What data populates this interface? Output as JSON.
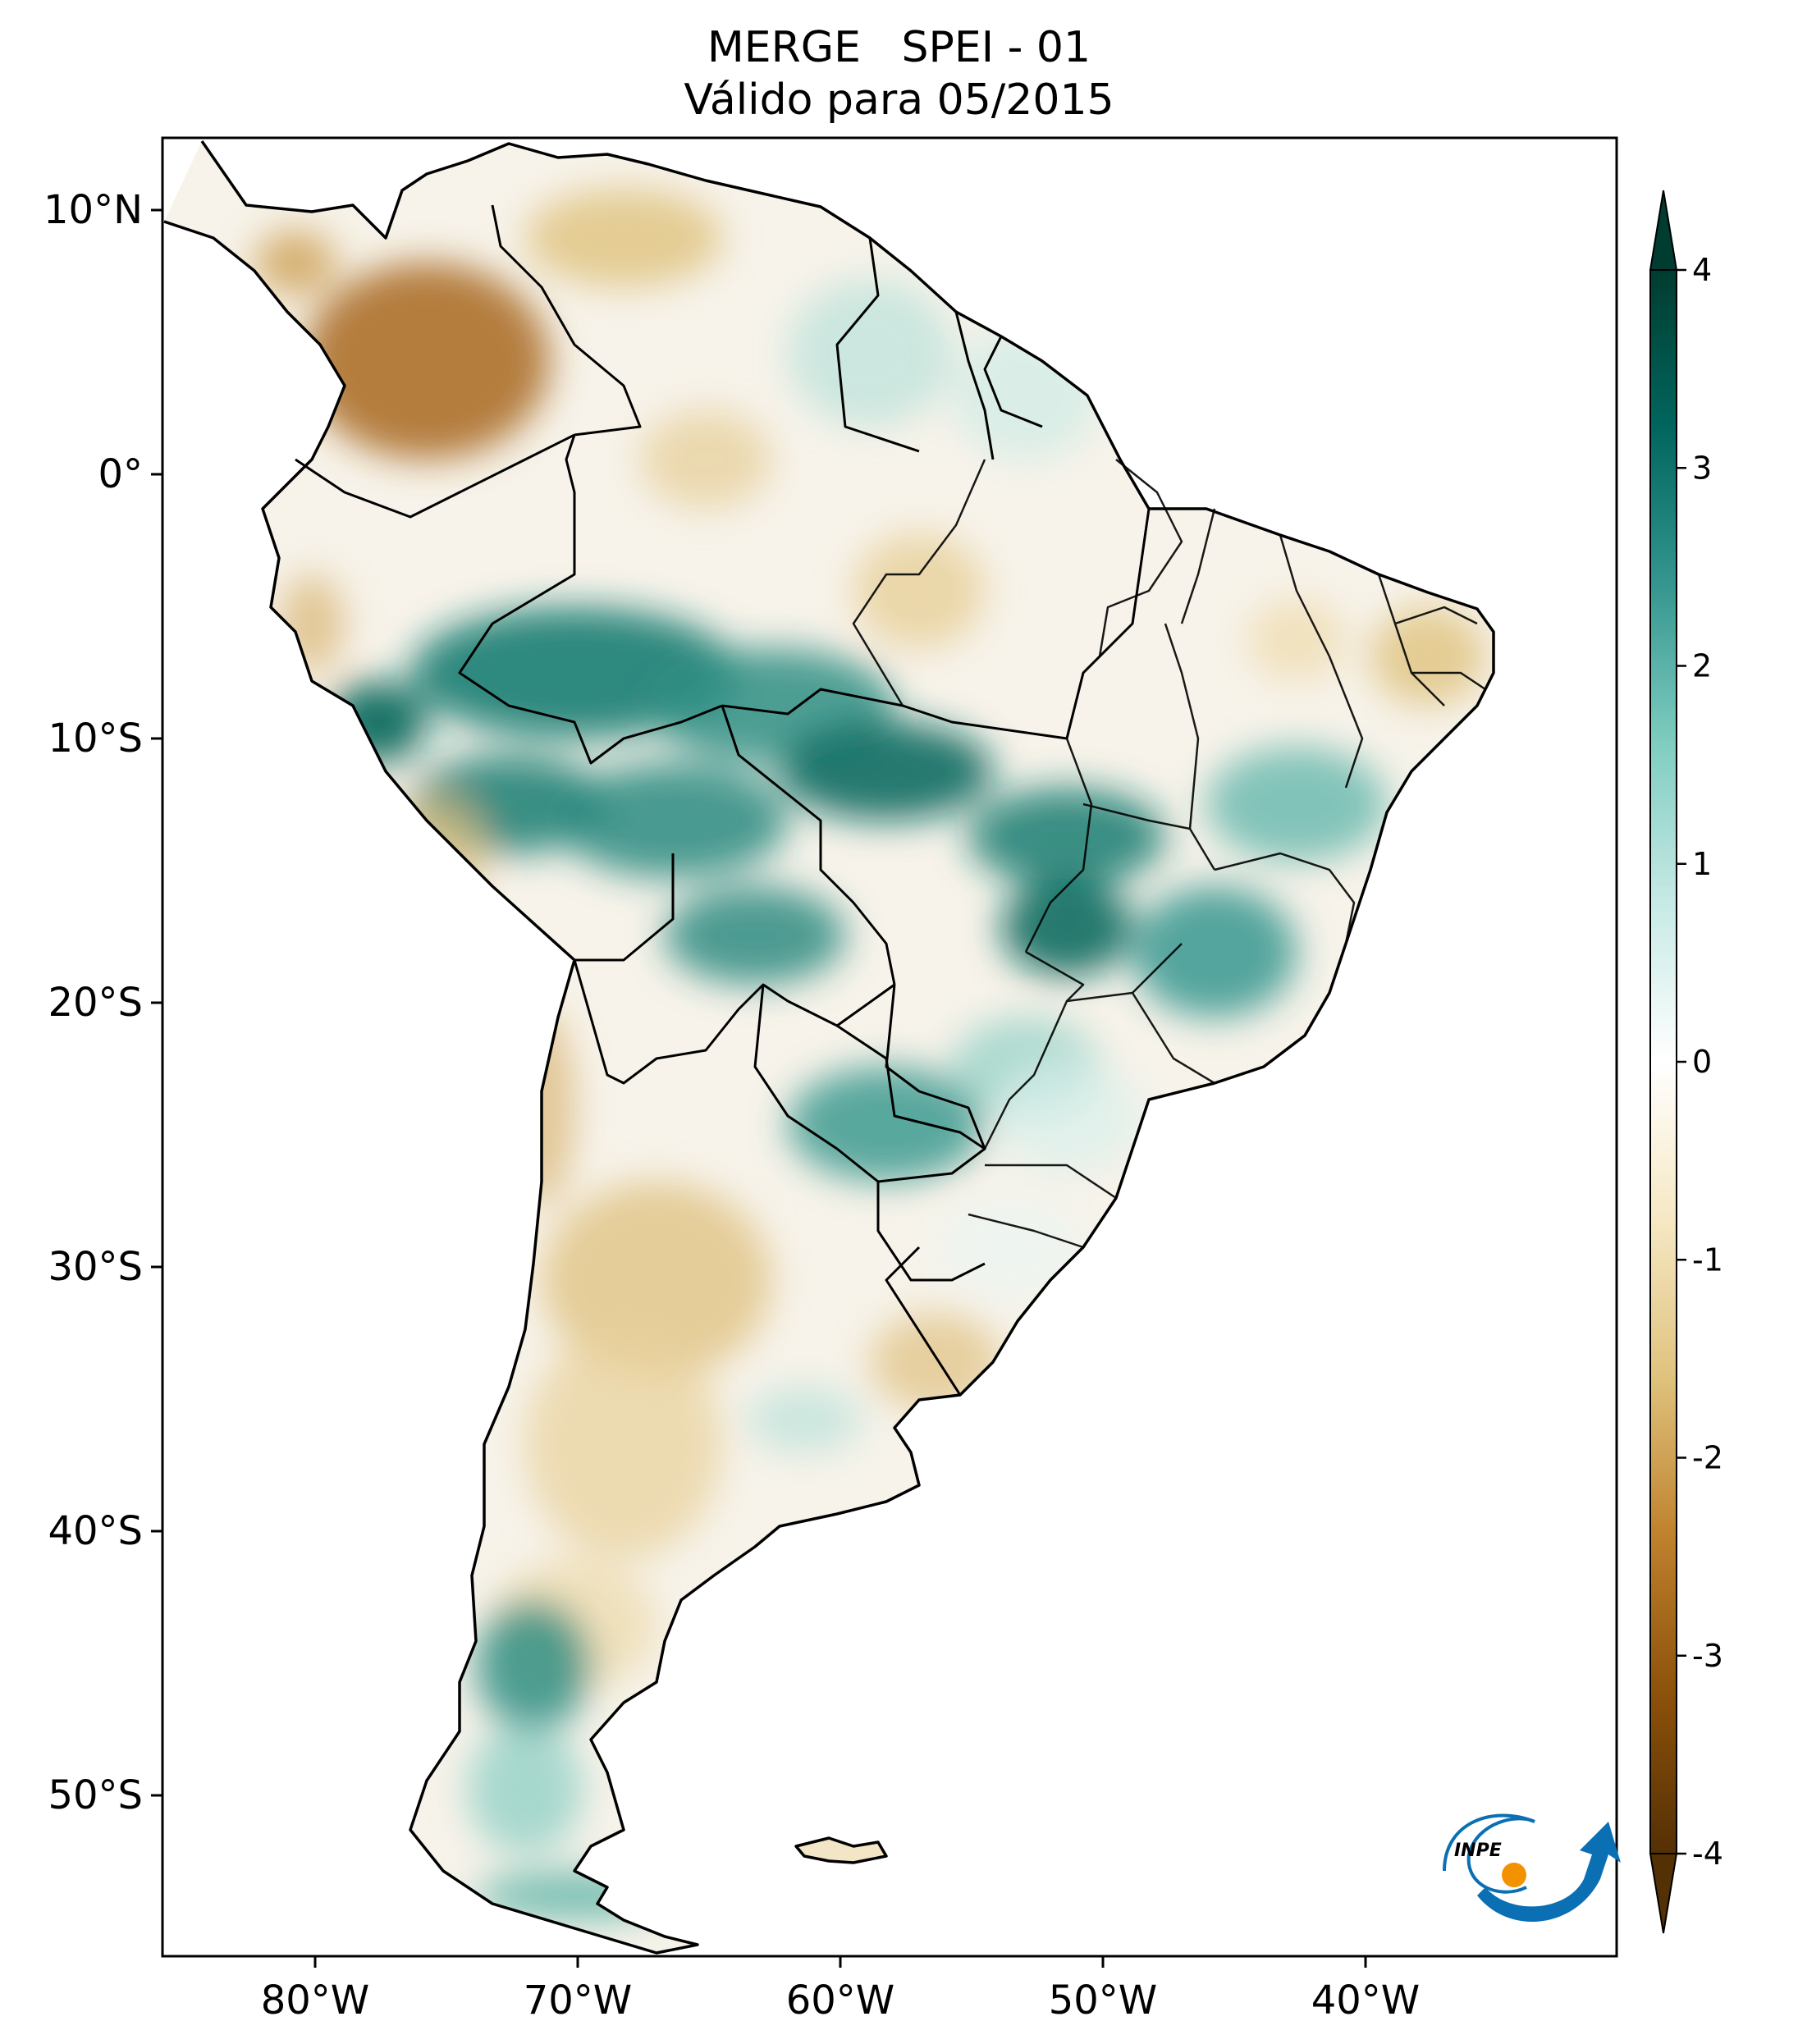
{
  "title": {
    "line1": "MERGE   SPEI - 01",
    "line2": "Válido para 05/2015"
  },
  "map": {
    "region": "South America",
    "lon_range": [
      -85,
      -30
    ],
    "lat_range": [
      -56,
      13
    ],
    "lon_ticks": [
      "80°W",
      "70°W",
      "60°W",
      "50°W",
      "40°W"
    ],
    "lat_ticks": [
      "10°N",
      "0°",
      "10°S",
      "20°S",
      "30°S",
      "40°S",
      "50°S"
    ]
  },
  "colorbar": {
    "ticks": [
      "4",
      "3",
      "2",
      "1",
      "0",
      "-1",
      "-2",
      "-3",
      "-4"
    ],
    "range": [
      -4,
      4
    ],
    "extend": "both",
    "colormap": "BrBG",
    "colors": [
      "#543005",
      "#8c510a",
      "#bf812d",
      "#dfc27d",
      "#f6e8c3",
      "#ffffff",
      "#c7eae5",
      "#80cdc1",
      "#35978f",
      "#01665e",
      "#003c30"
    ]
  },
  "logo": {
    "text": "INPE",
    "colors": [
      "#0a6fb3",
      "#f39200"
    ]
  }
}
